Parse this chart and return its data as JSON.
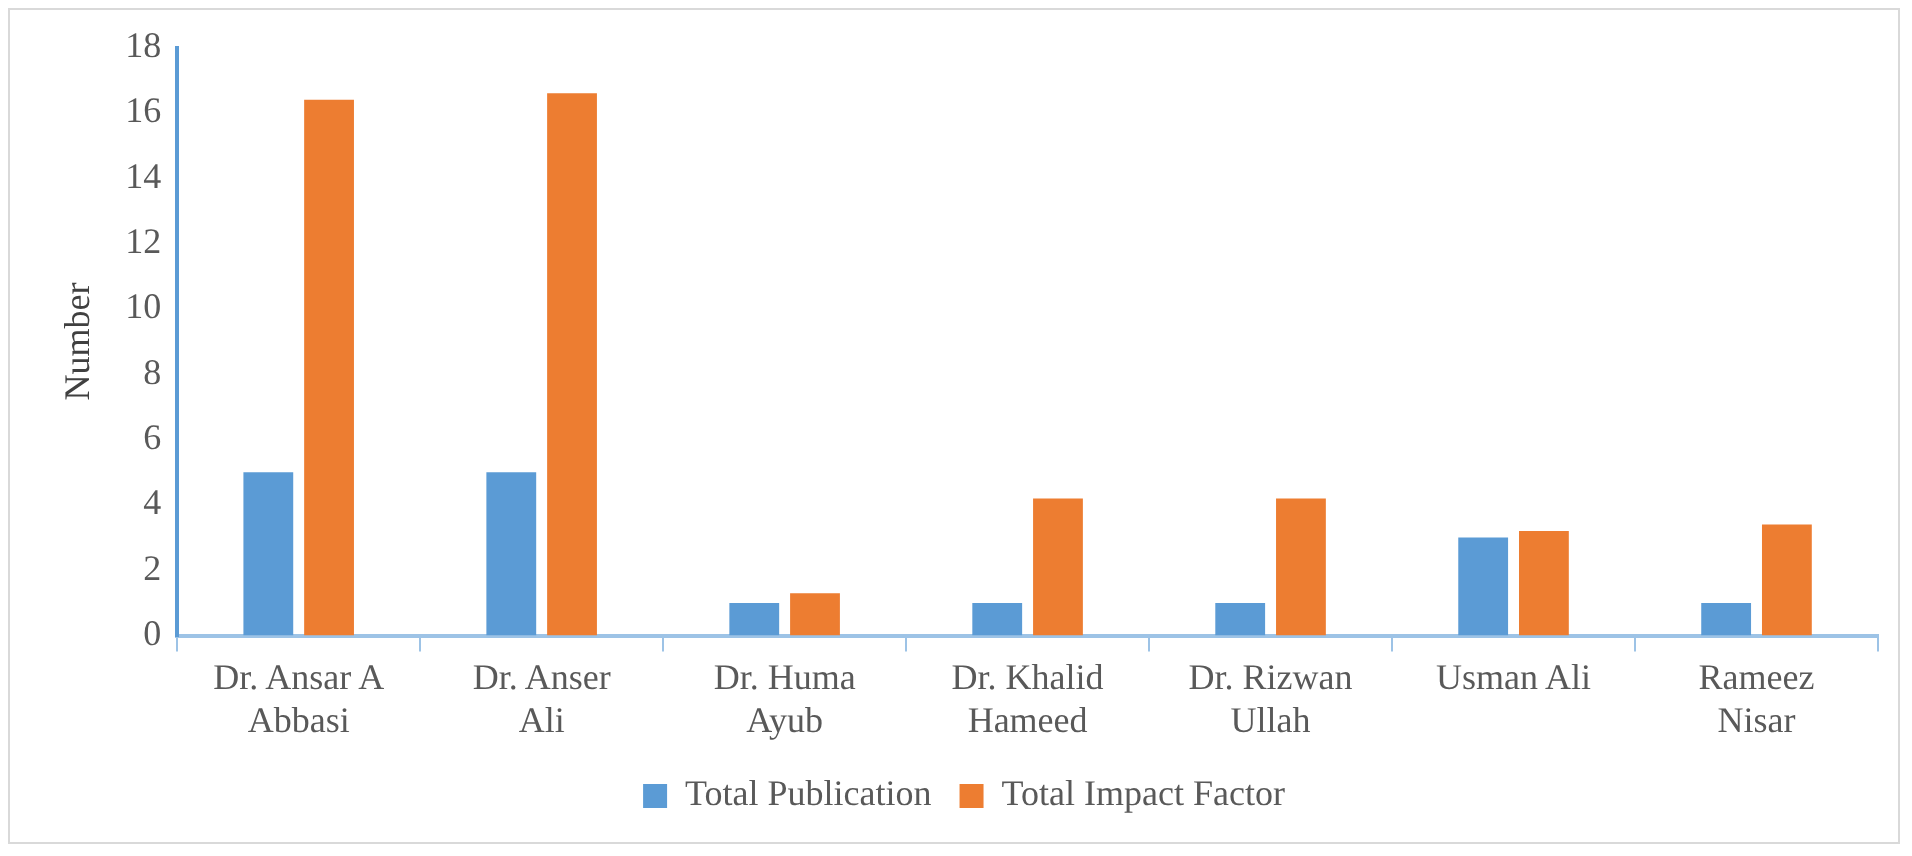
{
  "chart_data": {
    "type": "bar",
    "ylabel": "Number",
    "categories": [
      "Dr. Ansar A Abbasi",
      "Dr. Anser Ali",
      "Dr. Huma Ayub",
      "Dr. Khalid Hameed",
      "Dr. Rizwan Ullah",
      "Usman Ali",
      "Rameez Nisar"
    ],
    "series": [
      {
        "name": "Total Publication",
        "color": "#5b9bd5",
        "values": [
          5,
          5,
          1,
          1,
          1,
          3,
          1
        ]
      },
      {
        "name": "Total Impact Factor",
        "color": "#ed7d31",
        "values": [
          16.4,
          16.6,
          1.3,
          4.2,
          4.2,
          3.2,
          3.4
        ]
      }
    ],
    "ylim": [
      0,
      18
    ],
    "yticks": [
      0,
      2,
      4,
      6,
      8,
      10,
      12,
      14,
      16,
      18
    ],
    "grid": false,
    "legend": "bottom"
  }
}
